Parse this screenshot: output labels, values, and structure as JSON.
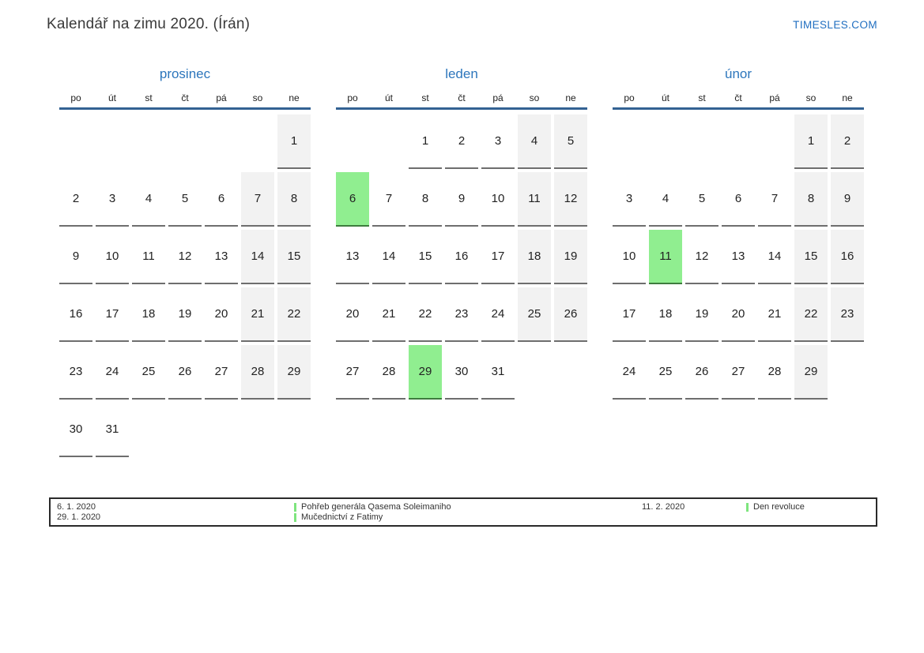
{
  "page": {
    "title": "Kalendář na zimu 2020. (Írán)",
    "brand": "TIMESLES.COM"
  },
  "weekdays": [
    "po",
    "út",
    "st",
    "čt",
    "pá",
    "so",
    "ne"
  ],
  "months": [
    {
      "id": "dec",
      "name": "prosinec",
      "weeks": [
        [
          "",
          "",
          "",
          "",
          "",
          "",
          "1"
        ],
        [
          "2",
          "3",
          "4",
          "5",
          "6",
          "7",
          "8"
        ],
        [
          "9",
          "10",
          "11",
          "12",
          "13",
          "14",
          "15"
        ],
        [
          "16",
          "17",
          "18",
          "19",
          "20",
          "21",
          "22"
        ],
        [
          "23",
          "24",
          "25",
          "26",
          "27",
          "28",
          "29"
        ],
        [
          "30",
          "31",
          "",
          "",
          "",
          "",
          ""
        ]
      ],
      "highlighted": []
    },
    {
      "id": "jan",
      "name": "leden",
      "weeks": [
        [
          "",
          "",
          "1",
          "2",
          "3",
          "4",
          "5"
        ],
        [
          "6",
          "7",
          "8",
          "9",
          "10",
          "11",
          "12"
        ],
        [
          "13",
          "14",
          "15",
          "16",
          "17",
          "18",
          "19"
        ],
        [
          "20",
          "21",
          "22",
          "23",
          "24",
          "25",
          "26"
        ],
        [
          "27",
          "28",
          "29",
          "30",
          "31",
          "",
          ""
        ]
      ],
      "highlighted": [
        "6",
        "29"
      ]
    },
    {
      "id": "feb",
      "name": "únor",
      "weeks": [
        [
          "",
          "",
          "",
          "",
          "",
          "1",
          "2"
        ],
        [
          "3",
          "4",
          "5",
          "6",
          "7",
          "8",
          "9"
        ],
        [
          "10",
          "11",
          "12",
          "13",
          "14",
          "15",
          "16"
        ],
        [
          "17",
          "18",
          "19",
          "20",
          "21",
          "22",
          "23"
        ],
        [
          "24",
          "25",
          "26",
          "27",
          "28",
          "29",
          ""
        ]
      ],
      "highlighted": [
        "11"
      ]
    }
  ],
  "legend": {
    "groups": [
      {
        "dates": [
          "6. 1. 2020",
          "29. 1. 2020"
        ],
        "events": [
          "Pohřeb generála Qasema Soleimaniho",
          "Mučednictví z Fatimy"
        ]
      },
      {
        "dates": [
          "11. 2. 2020"
        ],
        "events": [
          "Den revoluce"
        ]
      }
    ]
  },
  "colors": {
    "accent_blue": "#2d76bc",
    "header_rule_blue": "#336293",
    "highlight_green": "#90ee90",
    "weekend_gray": "#f2f2f2",
    "cell_border_gray": "#6e6e6e"
  }
}
